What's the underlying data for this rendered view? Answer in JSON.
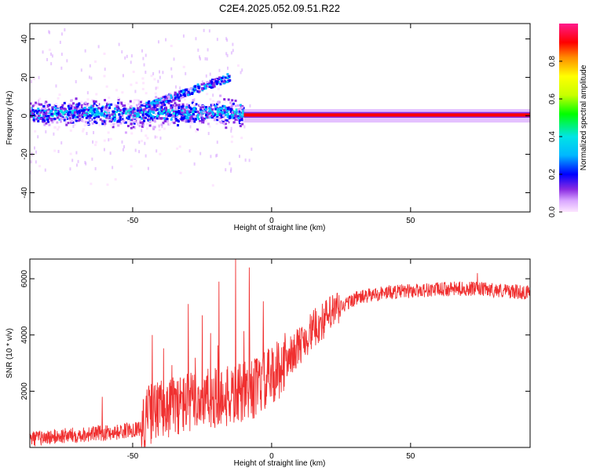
{
  "title": "C2E4.2025.052.09.51.R22",
  "colors": {
    "snr_line": "#f03030",
    "bar_cmap": [
      "#fde6ff",
      "#d9a6ff",
      "#8a2be2",
      "#0000ff",
      "#00b7ff",
      "#00e5e5",
      "#00ff00",
      "#c8ff00",
      "#ffff00",
      "#ff8c00",
      "#ff0000",
      "#ff1a8c"
    ]
  },
  "chart_data": [
    {
      "type": "heatmap",
      "name": "spectrogram",
      "title": "",
      "xlabel": "Height of straight line (km)",
      "ylabel": "Frequency (Hz)",
      "xlim": [
        -87,
        93
      ],
      "ylim": [
        -50,
        48
      ],
      "xticks": [
        -50,
        0,
        50
      ],
      "yticks": [
        -40,
        -20,
        0,
        20,
        40
      ],
      "colorbar": {
        "label": "Normalized spectral amplitude",
        "range": [
          0.0,
          1.0
        ],
        "ticks": [
          "0.0",
          "0.2",
          "0.4",
          "0.6",
          "0.8"
        ]
      },
      "features": [
        {
          "desc": "broad dispersed band",
          "x_range": [
            -87,
            -10
          ],
          "center_hz": 1.5,
          "halfwidth_hz": 6,
          "amplitude": 0.25
        },
        {
          "desc": "upper branch",
          "x_range": [
            -45,
            -15
          ],
          "center_hz_start": 5,
          "center_hz_end": 20,
          "amplitude": 0.2
        },
        {
          "desc": "narrow carrier line",
          "x_range": [
            -10,
            93
          ],
          "center_hz": 0.5,
          "halfwidth_hz": 1,
          "amplitude": 0.95
        }
      ]
    },
    {
      "type": "line",
      "name": "snr",
      "title": "",
      "xlabel": "Height of straight line (km)",
      "ylabel": "SNR (10 * v/v)",
      "xlim": [
        -87,
        93
      ],
      "ylim": [
        0,
        6700
      ],
      "xticks": [
        -50,
        0,
        50
      ],
      "yticks": [
        2000,
        4000,
        6000
      ],
      "trend": [
        {
          "x": -87,
          "y": 300
        },
        {
          "x": -70,
          "y": 450
        },
        {
          "x": -55,
          "y": 550
        },
        {
          "x": -47,
          "y": 700
        },
        {
          "x": -44,
          "y": 1200
        },
        {
          "x": -35,
          "y": 1500
        },
        {
          "x": -25,
          "y": 1700
        },
        {
          "x": -15,
          "y": 1800
        },
        {
          "x": -8,
          "y": 2000
        },
        {
          "x": 0,
          "y": 2500
        },
        {
          "x": 8,
          "y": 3400
        },
        {
          "x": 15,
          "y": 4200
        },
        {
          "x": 22,
          "y": 4800
        },
        {
          "x": 30,
          "y": 5300
        },
        {
          "x": 40,
          "y": 5500
        },
        {
          "x": 55,
          "y": 5600
        },
        {
          "x": 70,
          "y": 5650
        },
        {
          "x": 80,
          "y": 5600
        },
        {
          "x": 93,
          "y": 5500
        }
      ],
      "peaks": [
        {
          "x": -13,
          "y": 6700
        },
        {
          "x": -8,
          "y": 6400
        },
        {
          "x": -19,
          "y": 5900
        },
        {
          "x": -30,
          "y": 5100
        },
        {
          "x": -43,
          "y": 4000
        },
        {
          "x": -3,
          "y": 5200
        },
        {
          "x": -25,
          "y": 4700
        },
        {
          "x": -61,
          "y": 1800
        },
        {
          "x": 74,
          "y": 6200
        }
      ]
    }
  ]
}
